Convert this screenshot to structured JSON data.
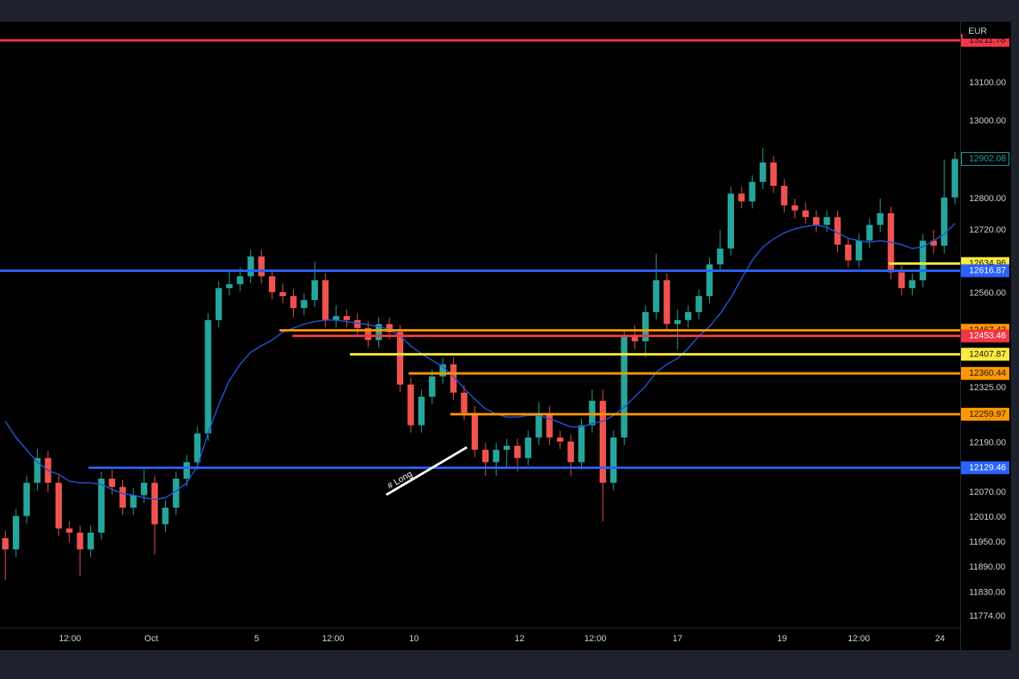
{
  "chart_data": {
    "type": "candlestick",
    "currency": "EUR",
    "open": [
      11960,
      11933,
      12013,
      12093,
      12153,
      12093,
      11983,
      11973,
      11933,
      11973,
      12103,
      12083,
      12033,
      12063,
      12093,
      11993,
      12033,
      12103,
      12143,
      12213,
      12493,
      12573,
      12583,
      12603,
      12653,
      12603,
      12563,
      12553,
      12523,
      12543,
      12593,
      12493,
      12503,
      12493,
      12473,
      12443,
      12483,
      12463,
      12333,
      12233,
      12303,
      12353,
      12383,
      12313,
      12263,
      12173,
      12143,
      12173,
      12183,
      12153,
      12203,
      12263,
      12203,
      12193,
      12143,
      12233,
      12293,
      12093,
      12203,
      12453,
      12440,
      12513,
      12593,
      12483,
      12493,
      12513,
      12553,
      12633,
      12673,
      12813,
      12793,
      12843,
      12893,
      12833,
      12783,
      12770,
      12753,
      12733,
      12753,
      12683,
      12643,
      12693,
      12733,
      12763,
      12613,
      12573,
      12593,
      12693,
      12680,
      12803
    ],
    "high": [
      11978,
      12030,
      12110,
      12175,
      12170,
      12110,
      12000,
      11990,
      11990,
      12120,
      12125,
      12100,
      12080,
      12130,
      12110,
      12050,
      12120,
      12160,
      12230,
      12510,
      12590,
      12620,
      12625,
      12670,
      12670,
      12620,
      12585,
      12570,
      12560,
      12640,
      12610,
      12530,
      12520,
      12510,
      12490,
      12500,
      12500,
      12480,
      12350,
      12320,
      12370,
      12400,
      12400,
      12330,
      12280,
      12190,
      12190,
      12200,
      12200,
      12220,
      12290,
      12280,
      12220,
      12210,
      12250,
      12320,
      12320,
      12220,
      12470,
      12480,
      12530,
      12660,
      12610,
      12520,
      12530,
      12570,
      12650,
      12720,
      12830,
      12830,
      12860,
      12930,
      12910,
      12850,
      12800,
      12790,
      12770,
      12770,
      12770,
      12700,
      12710,
      12750,
      12800,
      12780,
      12630,
      12610,
      12710,
      12720,
      12900,
      12920
    ],
    "low": [
      11860,
      11915,
      11995,
      12075,
      12070,
      11965,
      11950,
      11870,
      11915,
      11955,
      12065,
      12015,
      12015,
      12045,
      11920,
      11975,
      12015,
      12085,
      12125,
      12195,
      12475,
      12555,
      12565,
      12585,
      12585,
      12545,
      12535,
      12500,
      12505,
      12525,
      12475,
      12475,
      12475,
      12455,
      12425,
      12425,
      12445,
      12315,
      12215,
      12215,
      12285,
      12335,
      12295,
      12245,
      12155,
      12110,
      12110,
      12130,
      12120,
      12135,
      12185,
      12185,
      12175,
      12110,
      12125,
      12215,
      12000,
      12075,
      12185,
      12420,
      12400,
      12495,
      12465,
      12420,
      12475,
      12495,
      12535,
      12615,
      12655,
      12775,
      12775,
      12825,
      12815,
      12765,
      12750,
      12735,
      12715,
      12715,
      12665,
      12625,
      12625,
      12675,
      12715,
      12595,
      12555,
      12555,
      12575,
      12660,
      12660,
      12785
    ],
    "close": [
      11933,
      12013,
      12093,
      12153,
      12093,
      11983,
      11973,
      11933,
      11973,
      12103,
      12083,
      12033,
      12063,
      12093,
      11993,
      12033,
      12103,
      12143,
      12213,
      12493,
      12573,
      12583,
      12603,
      12653,
      12603,
      12563,
      12553,
      12523,
      12543,
      12593,
      12493,
      12503,
      12493,
      12473,
      12443,
      12483,
      12463,
      12333,
      12233,
      12303,
      12353,
      12383,
      12313,
      12263,
      12173,
      12143,
      12173,
      12183,
      12153,
      12203,
      12263,
      12203,
      12193,
      12143,
      12233,
      12293,
      12093,
      12203,
      12453,
      12440,
      12513,
      12593,
      12483,
      12493,
      12513,
      12553,
      12633,
      12673,
      12813,
      12793,
      12843,
      12893,
      12833,
      12783,
      12770,
      12753,
      12733,
      12753,
      12683,
      12643,
      12693,
      12733,
      12763,
      12613,
      12573,
      12593,
      12693,
      12680,
      12803,
      12902.08
    ],
    "up_color": "#26a69a",
    "down_color": "#ef5350",
    "ma": {
      "color": "#2454d6",
      "values": [
        12243,
        12203,
        12173,
        12143,
        12123,
        12113,
        12097,
        12093,
        12093,
        12089,
        12077,
        12067,
        12063,
        12057,
        12053,
        12057,
        12073,
        12093,
        12133,
        12213,
        12283,
        12343,
        12383,
        12413,
        12429,
        12443,
        12463,
        12473,
        12483,
        12489,
        12493,
        12493,
        12489,
        12485,
        12481,
        12477,
        12469,
        12453,
        12429,
        12409,
        12393,
        12377,
        12353,
        12323,
        12297,
        12273,
        12261,
        12253,
        12253,
        12257,
        12257,
        12249,
        12239,
        12229,
        12229,
        12237,
        12243,
        12257,
        12277,
        12303,
        12329,
        12363,
        12383,
        12397,
        12423,
        12453,
        12477,
        12509,
        12549,
        12597,
        12643,
        12677,
        12697,
        12713,
        12723,
        12729,
        12733,
        12727,
        12713,
        12699,
        12693,
        12689,
        12693,
        12689,
        12683,
        12673,
        12677,
        12693,
        12709,
        12737
      ]
    },
    "ylim": [
      11748,
      13259
    ],
    "log_scale": true,
    "yticks": [
      {
        "value": 13100,
        "label": "13100.00"
      },
      {
        "value": 13000,
        "label": "13000.00"
      },
      {
        "value": 12800,
        "label": "12800.00"
      },
      {
        "value": 12720,
        "label": "12720.00"
      },
      {
        "value": 12560,
        "label": "12560.00"
      },
      {
        "value": 12325,
        "label": "12325.00"
      },
      {
        "value": 12190,
        "label": "12190.00"
      },
      {
        "value": 12070,
        "label": "12070.00"
      },
      {
        "value": 12010,
        "label": "12010.00"
      },
      {
        "value": 11950,
        "label": "11950.00"
      },
      {
        "value": 11890,
        "label": "11890.00"
      },
      {
        "value": 11830,
        "label": "11830.00"
      },
      {
        "value": 11774,
        "label": "11774.00"
      }
    ],
    "xlim": [
      -0.5,
      89.5
    ],
    "xticks": [
      {
        "value": 6.06,
        "label": "12:00"
      },
      {
        "value": 13.68,
        "label": "Oct"
      },
      {
        "value": 23.56,
        "label": "5"
      },
      {
        "value": 30.72,
        "label": "12:00"
      },
      {
        "value": 38.3,
        "label": "10"
      },
      {
        "value": 48.2,
        "label": "12"
      },
      {
        "value": 55.3,
        "label": "12:00"
      },
      {
        "value": 63.0,
        "label": "17"
      },
      {
        "value": 72.8,
        "label": "19"
      },
      {
        "value": 80.0,
        "label": "12:00"
      },
      {
        "value": 87.6,
        "label": "24"
      }
    ],
    "levels": [
      {
        "value": 13211.78,
        "color": "#f23645",
        "text_color": "#131722"
      },
      {
        "value": 12634.96,
        "color": "#ffeb3b",
        "text_color": "#131722",
        "from": 82.8
      },
      {
        "value": 12616.87,
        "color": "#2962ff",
        "text_color": "#ffffff"
      },
      {
        "value": 12467.43,
        "color": "#ff9800",
        "text_color": "#131722",
        "from": 25.7
      },
      {
        "value": 12453.46,
        "color": "#f23645",
        "text_color": "#ffffff",
        "from": 26.9
      },
      {
        "value": 12407.87,
        "color": "#ffeb3b",
        "text_color": "#131722",
        "from": 32.3
      },
      {
        "value": 12360.44,
        "color": "#ff9800",
        "text_color": "#131722",
        "from": 37.8
      },
      {
        "value": 12259.97,
        "color": "#ff9800",
        "text_color": "#131722",
        "from": 41.7
      },
      {
        "value": 12129.46,
        "color": "#2962ff",
        "text_color": "#ffffff",
        "from": 7.8
      }
    ],
    "last_price": {
      "value": 12902.08,
      "color": "#26a69a"
    },
    "annotation": "# Long"
  }
}
